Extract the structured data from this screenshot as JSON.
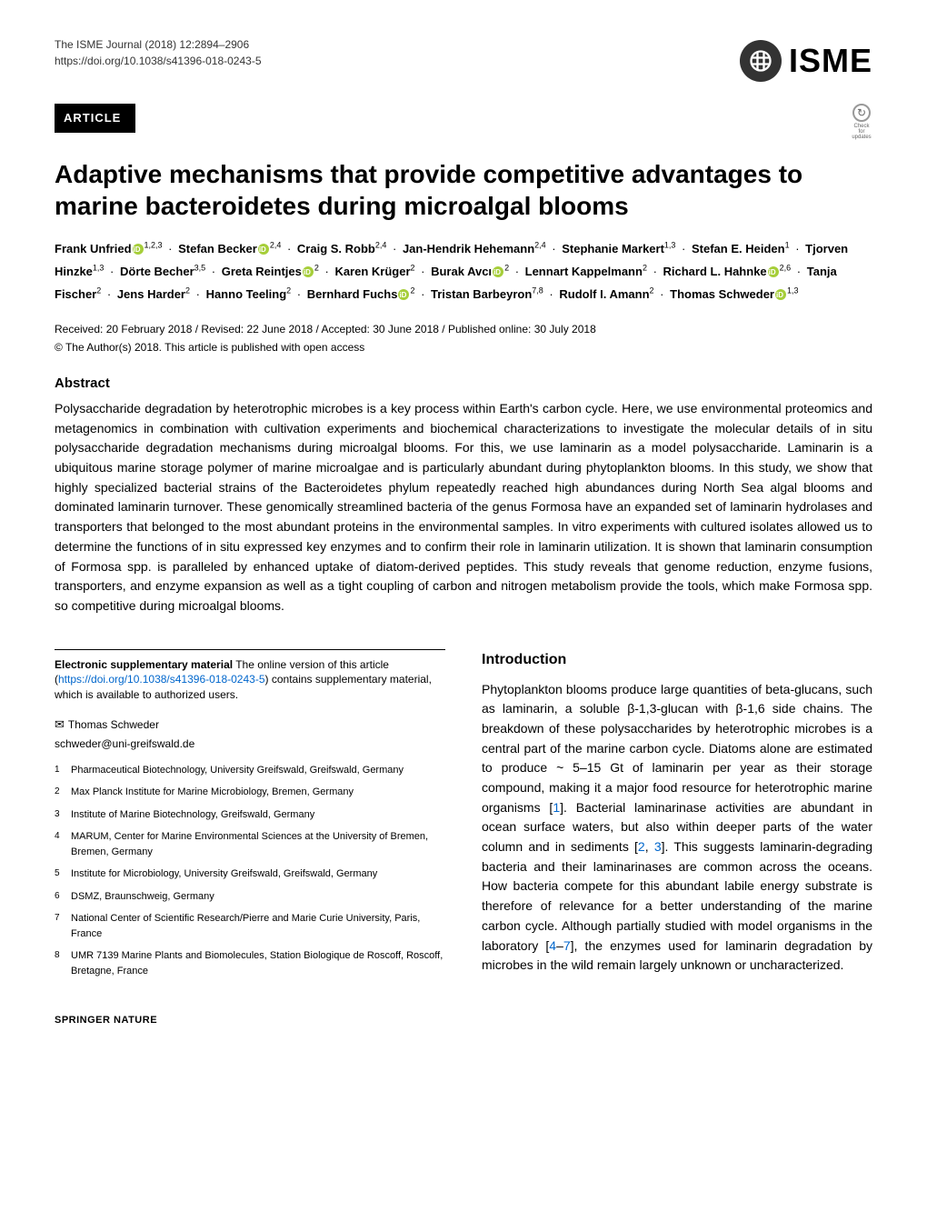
{
  "journal": "The ISME Journal (2018) 12:2894–2906",
  "doi": "https://doi.org/10.1038/s41396-018-0243-5",
  "logo_text": "ISME",
  "article_label": "ARTICLE",
  "check_updates_label": "Check for updates",
  "title": "Adaptive mechanisms that provide competitive advantages to marine bacteroidetes during microalgal blooms",
  "authors": [
    {
      "name": "Frank Unfried",
      "orcid": true,
      "aff": "1,2,3"
    },
    {
      "name": "Stefan Becker",
      "orcid": true,
      "aff": "2,4"
    },
    {
      "name": "Craig S. Robb",
      "orcid": false,
      "aff": "2,4"
    },
    {
      "name": "Jan-Hendrik Hehemann",
      "orcid": false,
      "aff": "2,4"
    },
    {
      "name": "Stephanie Markert",
      "orcid": false,
      "aff": "1,3"
    },
    {
      "name": "Stefan E. Heiden",
      "orcid": false,
      "aff": "1"
    },
    {
      "name": "Tjorven Hinzke",
      "orcid": false,
      "aff": "1,3"
    },
    {
      "name": "Dörte Becher",
      "orcid": false,
      "aff": "3,5"
    },
    {
      "name": "Greta Reintjes",
      "orcid": true,
      "aff": "2"
    },
    {
      "name": "Karen Krüger",
      "orcid": false,
      "aff": "2"
    },
    {
      "name": "Burak Avcı",
      "orcid": true,
      "aff": "2"
    },
    {
      "name": "Lennart Kappelmann",
      "orcid": false,
      "aff": "2"
    },
    {
      "name": "Richard L. Hahnke",
      "orcid": true,
      "aff": "2,6"
    },
    {
      "name": "Tanja Fischer",
      "orcid": false,
      "aff": "2"
    },
    {
      "name": "Jens Harder",
      "orcid": false,
      "aff": "2"
    },
    {
      "name": "Hanno Teeling",
      "orcid": false,
      "aff": "2"
    },
    {
      "name": "Bernhard Fuchs",
      "orcid": true,
      "aff": "2"
    },
    {
      "name": "Tristan Barbeyron",
      "orcid": false,
      "aff": "7,8"
    },
    {
      "name": "Rudolf I. Amann",
      "orcid": false,
      "aff": "2"
    },
    {
      "name": "Thomas Schweder",
      "orcid": true,
      "aff": "1,3"
    }
  ],
  "dates": "Received: 20 February 2018 / Revised: 22 June 2018 / Accepted: 30 June 2018 / Published online: 30 July 2018",
  "copyright": "© The Author(s) 2018. This article is published with open access",
  "abstract_heading": "Abstract",
  "abstract": "Polysaccharide degradation by heterotrophic microbes is a key process within Earth's carbon cycle. Here, we use environmental proteomics and metagenomics in combination with cultivation experiments and biochemical characterizations to investigate the molecular details of in situ polysaccharide degradation mechanisms during microalgal blooms. For this, we use laminarin as a model polysaccharide. Laminarin is a ubiquitous marine storage polymer of marine microalgae and is particularly abundant during phytoplankton blooms. In this study, we show that highly specialized bacterial strains of the Bacteroidetes phylum repeatedly reached high abundances during North Sea algal blooms and dominated laminarin turnover. These genomically streamlined bacteria of the genus Formosa have an expanded set of laminarin hydrolases and transporters that belonged to the most abundant proteins in the environmental samples. In vitro experiments with cultured isolates allowed us to determine the functions of in situ expressed key enzymes and to confirm their role in laminarin utilization. It is shown that laminarin consumption of Formosa spp. is paralleled by enhanced uptake of diatom-derived peptides. This study reveals that genome reduction, enzyme fusions, transporters, and enzyme expansion as well as a tight coupling of carbon and nitrogen metabolism provide the tools, which make Formosa spp. so competitive during microalgal blooms.",
  "esm_bold": "Electronic supplementary material",
  "esm_text_1": " The online version of this article (",
  "esm_link": "https://doi.org/10.1038/s41396-018-0243-5",
  "esm_text_2": ") contains supplementary material, which is available to authorized users.",
  "corresponding_name": "Thomas Schweder",
  "corresponding_email": "schweder@uni-greifswald.de",
  "affiliations": [
    {
      "n": "1",
      "text": "Pharmaceutical Biotechnology, University Greifswald, Greifswald, Germany"
    },
    {
      "n": "2",
      "text": "Max Planck Institute for Marine Microbiology, Bremen, Germany"
    },
    {
      "n": "3",
      "text": "Institute of Marine Biotechnology, Greifswald, Germany"
    },
    {
      "n": "4",
      "text": "MARUM, Center for Marine Environmental Sciences at the University of Bremen, Bremen, Germany"
    },
    {
      "n": "5",
      "text": "Institute for Microbiology, University Greifswald, Greifswald, Germany"
    },
    {
      "n": "6",
      "text": "DSMZ, Braunschweig, Germany"
    },
    {
      "n": "7",
      "text": "National Center of Scientific Research/Pierre and Marie Curie University, Paris, France"
    },
    {
      "n": "8",
      "text": "UMR 7139 Marine Plants and Biomolecules, Station Biologique de Roscoff, Roscoff, Bretagne, France"
    }
  ],
  "intro_heading": "Introduction",
  "intro_p1_a": "Phytoplankton blooms produce large quantities of beta-glucans, such as laminarin, a soluble β-1,3-glucan with β-1,6 side chains. The breakdown of these polysaccharides by heterotrophic microbes is a central part of the marine carbon cycle. Diatoms alone are estimated to produce ~ 5–15 Gt of laminarin per year as their storage compound, making it a major food resource for heterotrophic marine organisms [",
  "ref1": "1",
  "intro_p1_b": "]. Bacterial laminarinase activities are abundant in ocean surface waters, but also within deeper parts of the water column and in sediments [",
  "ref2": "2",
  "ref3": "3",
  "intro_p1_c": "]. This suggests laminarin-degrading bacteria and their laminarinases are common across the oceans. How bacteria compete for this abundant labile energy substrate is therefore of relevance for a better understanding of the marine carbon cycle. Although partially studied with model organisms in the laboratory [",
  "ref4": "4",
  "ref7": "7",
  "intro_p1_d": "], the enzymes used for laminarin degradation by microbes in the wild remain largely unknown or uncharacterized.",
  "imprint": "SPRINGER NATURE",
  "colors": {
    "text": "#000000",
    "bg": "#ffffff",
    "link": "#0066cc",
    "orcid": "#a6ce39",
    "logo_bg": "#333333"
  }
}
